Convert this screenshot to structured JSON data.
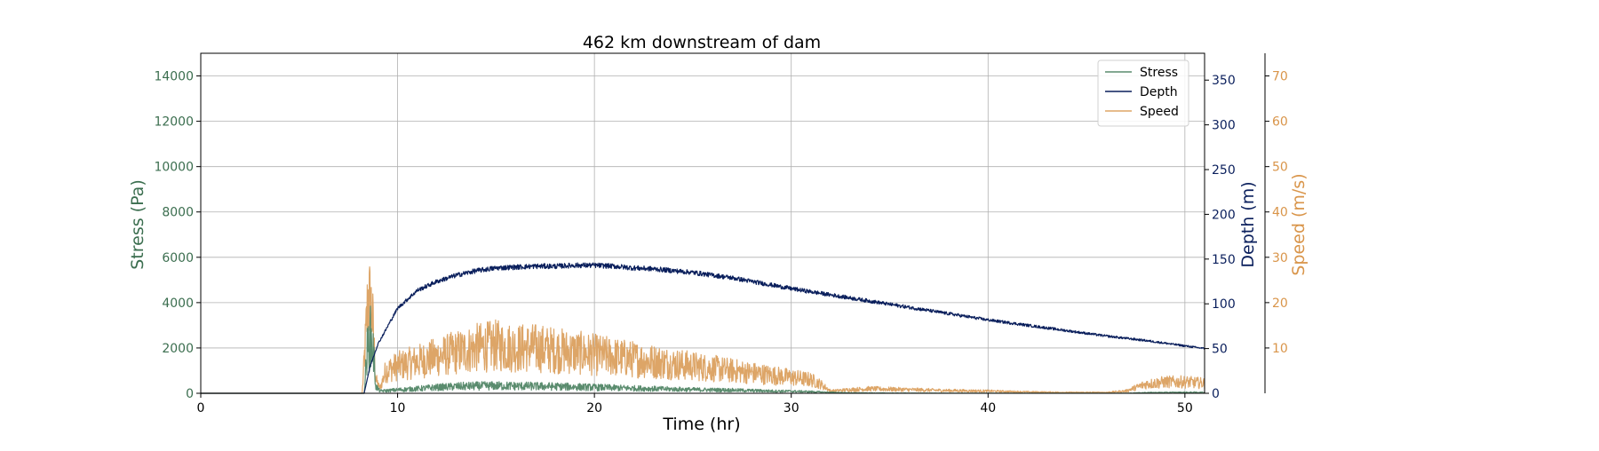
{
  "chart_data": {
    "type": "line",
    "title": "462 km downstream of dam",
    "xlabel": "Time (hr)",
    "xlim": [
      0,
      51
    ],
    "xticks": [
      0,
      10,
      20,
      30,
      40,
      50
    ],
    "grid": true,
    "legend_placement": "top-right",
    "axes": {
      "stress": {
        "label": "Stress (Pa)",
        "side": "left",
        "color": "#3b6e4f",
        "ylim": [
          0,
          15000
        ],
        "ticks": [
          0,
          2000,
          4000,
          6000,
          8000,
          10000,
          12000,
          14000
        ]
      },
      "depth": {
        "label": "Depth (m)",
        "side": "right",
        "color": "#0a1f5c",
        "ylim": [
          0,
          380
        ],
        "ticks": [
          0,
          50,
          100,
          150,
          200,
          250,
          300,
          350
        ]
      },
      "speed": {
        "label": "Speed (m/s)",
        "side": "right-outer",
        "color": "#d9954a",
        "ylim": [
          0,
          75
        ],
        "ticks": [
          10,
          20,
          30,
          40,
          50,
          60,
          70
        ]
      }
    },
    "series": [
      {
        "name": "Stress",
        "axis": "stress",
        "color": "#5a8c6e",
        "x": [
          0,
          8.3,
          8.45,
          8.6,
          8.75,
          8.9,
          9.1,
          9.5,
          10,
          11,
          12,
          13,
          14,
          15,
          16,
          17,
          18,
          19,
          20,
          21,
          22,
          23,
          24,
          25,
          26,
          27,
          28,
          29,
          30,
          31,
          32,
          33,
          35,
          40,
          45,
          47,
          48,
          50,
          51
        ],
        "values": [
          0,
          0,
          1800,
          2500,
          2000,
          300,
          100,
          120,
          150,
          200,
          260,
          300,
          320,
          330,
          320,
          310,
          300,
          280,
          260,
          240,
          220,
          200,
          180,
          160,
          150,
          140,
          120,
          100,
          90,
          70,
          40,
          20,
          10,
          5,
          5,
          5,
          30,
          40,
          40
        ],
        "noise": 0.6
      },
      {
        "name": "Depth",
        "axis": "depth",
        "color": "#0a1f5c",
        "x": [
          0,
          8.3,
          8.6,
          9,
          9.5,
          10,
          11,
          12,
          13,
          14,
          15,
          16,
          17,
          18,
          19,
          20,
          21,
          22,
          23,
          24,
          25,
          26,
          27,
          28,
          29,
          30,
          32,
          34,
          36,
          38,
          40,
          42,
          44,
          46,
          48,
          50,
          51
        ],
        "values": [
          0,
          0,
          30,
          55,
          75,
          95,
          115,
          125,
          132,
          137,
          140,
          141,
          142,
          142,
          143,
          143,
          142,
          140,
          139,
          137,
          135,
          132,
          129,
          125,
          121,
          117,
          110,
          103,
          96,
          89,
          82,
          76,
          70,
          64,
          59,
          53,
          50
        ],
        "noise": 0.02
      },
      {
        "name": "Speed",
        "axis": "speed",
        "color": "#dda567",
        "x": [
          0,
          8.2,
          8.35,
          8.5,
          8.7,
          8.9,
          9.1,
          9.4,
          10,
          11,
          12,
          13,
          14,
          15,
          16,
          17,
          18,
          19,
          20,
          21,
          22,
          23,
          24,
          25,
          26,
          27,
          28,
          29,
          30,
          31,
          31.5,
          32,
          33,
          34,
          36,
          38,
          40,
          42,
          44,
          46,
          47,
          48,
          49,
          50,
          51
        ],
        "values": [
          0,
          0,
          10,
          21,
          18,
          3,
          1,
          5,
          6,
          7,
          8,
          9,
          10,
          10.5,
          10,
          10,
          9.5,
          9,
          8.5,
          8,
          7.5,
          7,
          6.5,
          6,
          5.5,
          5,
          4.5,
          4,
          3.5,
          3,
          2,
          0.5,
          0.8,
          1,
          0.8,
          0.6,
          0.5,
          0.3,
          0.2,
          0.2,
          0.5,
          2,
          2.5,
          2.5,
          2.2
        ],
        "noise": 0.55
      }
    ]
  }
}
